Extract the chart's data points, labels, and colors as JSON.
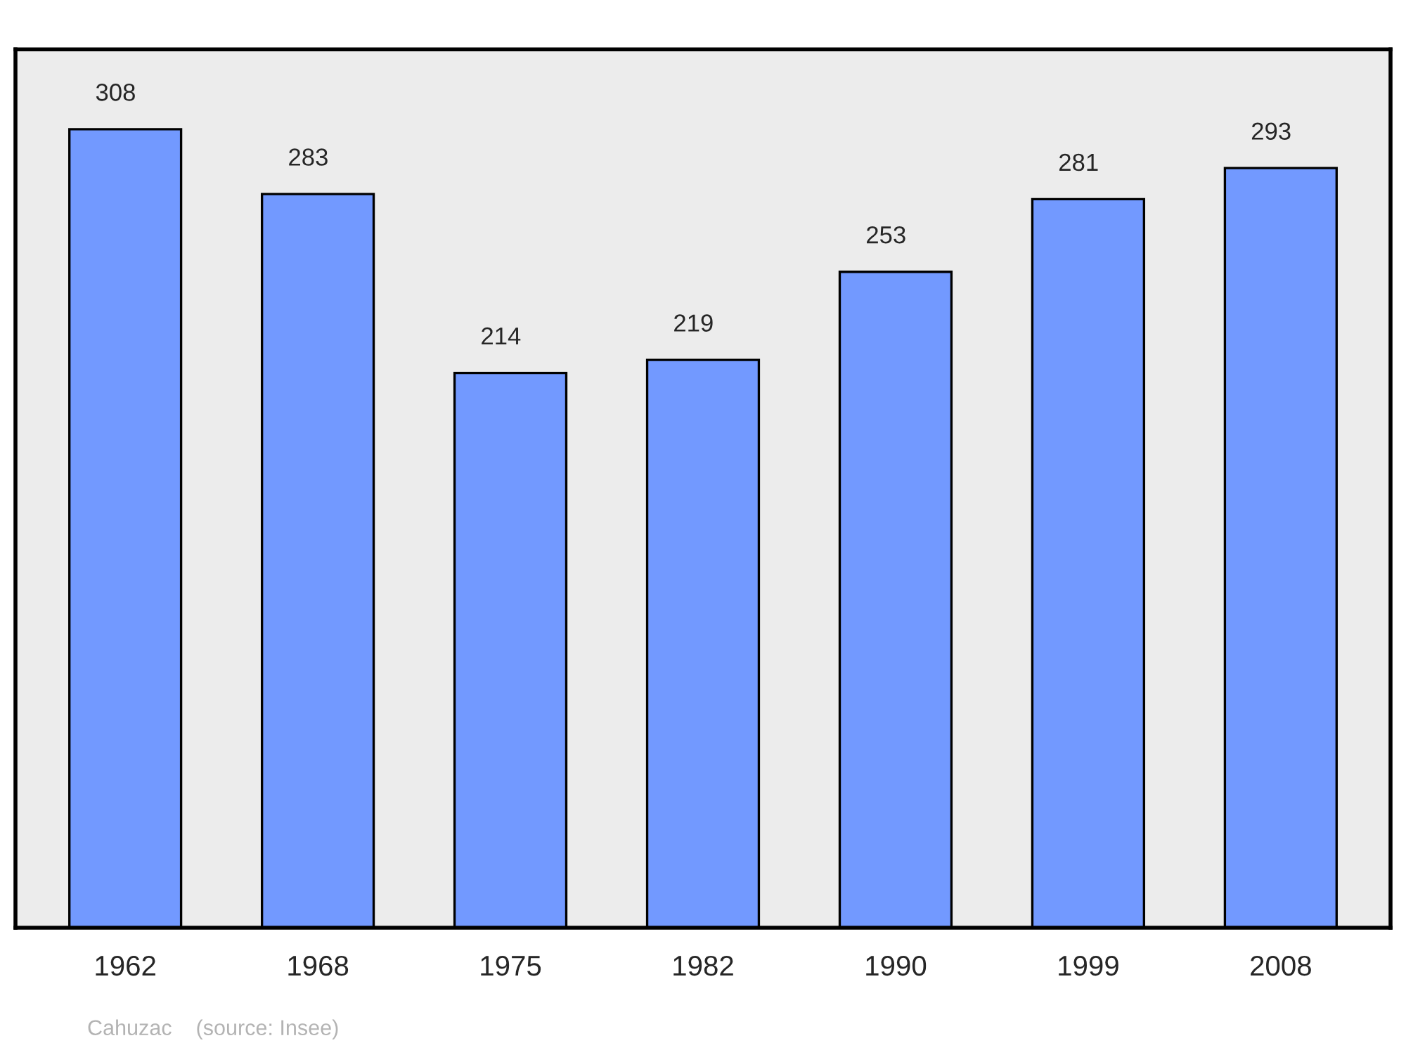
{
  "chart_data": {
    "type": "bar",
    "categories": [
      "1962",
      "1968",
      "1975",
      "1982",
      "1990",
      "1999",
      "2008"
    ],
    "values": [
      308,
      283,
      214,
      219,
      253,
      281,
      293
    ],
    "color": "#7299ff",
    "data_labels": true,
    "annotations": [
      "Cahuzac    (source: Insee)"
    ]
  }
}
